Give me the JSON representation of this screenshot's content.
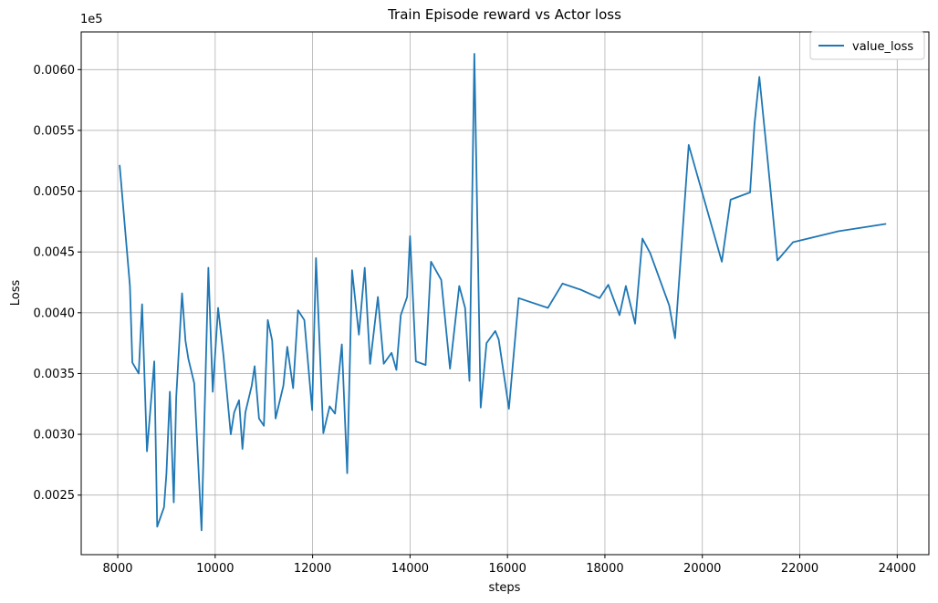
{
  "chart_data": {
    "type": "line",
    "title": "Train Episode reward vs Actor loss",
    "xlabel": "steps",
    "ylabel": "Loss",
    "offset_label": "1e5",
    "xlim": [
      7250,
      24650
    ],
    "ylim": [
      0.00201,
      0.00631
    ],
    "xticks": [
      8000,
      10000,
      12000,
      14000,
      16000,
      18000,
      20000,
      22000,
      24000
    ],
    "yticks": [
      0.0025,
      0.003,
      0.0035,
      0.004,
      0.0045,
      0.005,
      0.0055,
      0.006
    ],
    "xtick_labels": [
      "8000",
      "10000",
      "12000",
      "14000",
      "16000",
      "18000",
      "20000",
      "22000",
      "24000"
    ],
    "ytick_labels": [
      "0.0025",
      "0.0030",
      "0.0035",
      "0.0040",
      "0.0045",
      "0.0050",
      "0.0055",
      "0.0060"
    ],
    "grid": true,
    "legend_position": "top-right",
    "colors": {
      "series": "#1f77b4"
    },
    "series": [
      {
        "name": "value_loss",
        "x": [
          8040,
          8250,
          8300,
          8430,
          8500,
          8600,
          8750,
          8810,
          8950,
          9000,
          9070,
          9150,
          9200,
          9320,
          9390,
          9450,
          9570,
          9720,
          9860,
          9950,
          10060,
          10170,
          10320,
          10390,
          10490,
          10560,
          10620,
          10750,
          10810,
          10900,
          11000,
          11080,
          11170,
          11240,
          11400,
          11480,
          11600,
          11700,
          11830,
          11990,
          12070,
          12220,
          12350,
          12460,
          12600,
          12710,
          12810,
          12950,
          13070,
          13180,
          13340,
          13460,
          13620,
          13720,
          13810,
          13940,
          14000,
          14120,
          14320,
          14430,
          14640,
          14820,
          15010,
          15130,
          15220,
          15320,
          15450,
          15570,
          15750,
          15820,
          16030,
          16230,
          16830,
          17130,
          17500,
          17890,
          18070,
          18300,
          18430,
          18620,
          18770,
          18930,
          19320,
          19440,
          19720,
          20400,
          20580,
          20980,
          21070,
          21170,
          21330,
          21540,
          21860,
          22790,
          23760
        ],
        "y": [
          0.00521,
          0.00422,
          0.00359,
          0.0035,
          0.00407,
          0.00286,
          0.0036,
          0.00224,
          0.0024,
          0.00268,
          0.00335,
          0.00244,
          0.0033,
          0.00416,
          0.00377,
          0.00362,
          0.00342,
          0.00221,
          0.00437,
          0.00335,
          0.00404,
          0.00365,
          0.003,
          0.00318,
          0.00328,
          0.00288,
          0.00318,
          0.0034,
          0.00356,
          0.00313,
          0.00307,
          0.00394,
          0.00377,
          0.00313,
          0.0034,
          0.00372,
          0.00338,
          0.00402,
          0.00394,
          0.0032,
          0.00445,
          0.00301,
          0.00323,
          0.00317,
          0.00374,
          0.00268,
          0.00435,
          0.00382,
          0.00437,
          0.00358,
          0.00413,
          0.00358,
          0.00367,
          0.00353,
          0.00398,
          0.00413,
          0.00463,
          0.0036,
          0.00357,
          0.00442,
          0.00427,
          0.00354,
          0.00422,
          0.00404,
          0.00344,
          0.00613,
          0.00322,
          0.00375,
          0.00385,
          0.00378,
          0.00321,
          0.00412,
          0.00404,
          0.00424,
          0.00419,
          0.00412,
          0.00423,
          0.00398,
          0.00422,
          0.00391,
          0.00461,
          0.00449,
          0.00406,
          0.00379,
          0.00538,
          0.00442,
          0.00493,
          0.00499,
          0.00555,
          0.00594,
          0.0053,
          0.00443,
          0.00458,
          0.00467,
          0.00473
        ]
      }
    ]
  }
}
